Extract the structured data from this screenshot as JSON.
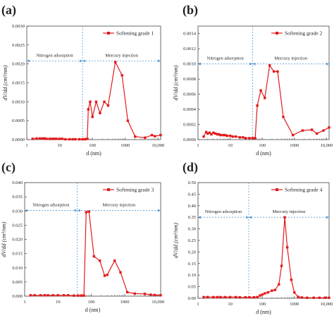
{
  "figure": {
    "common_xlabel": "d (nm)",
    "common_ylabel": "dV/dd (cm³/nm)",
    "region_labels": {
      "left": "Nitrogen adsorption",
      "right": "Mercury injection"
    },
    "colors": {
      "series": "#e31a1c",
      "axis": "#444444",
      "guide": "#5b9bd5"
    }
  },
  "chart_data": [
    {
      "panel": "(a)",
      "type": "line",
      "xscale": "log",
      "xlim": [
        1,
        12000
      ],
      "ylim": [
        0,
        0.003
      ],
      "yticks": [
        "0.0000",
        "0.0005",
        "0.0010",
        "0.0015",
        "0.0020",
        "0.0025",
        "0.0030"
      ],
      "ytick_values": [
        0,
        0.0005,
        0.001,
        0.0015,
        0.002,
        0.0025,
        0.003
      ],
      "xticks": [
        "1",
        "10",
        "100",
        "1000",
        "10,000"
      ],
      "xlabel": "d (nm)",
      "ylabel": "dV/dd (cm³/nm)",
      "legend": "Softening grade 1",
      "hline": 0.00208,
      "vline": 50,
      "series": [
        {
          "name": "Softening grade 1",
          "x": [
            1.5,
            2,
            2.5,
            3,
            3.5,
            4,
            5,
            6,
            7,
            8,
            10,
            12,
            15,
            20,
            25,
            30,
            40,
            50,
            60,
            70,
            75,
            85,
            100,
            130,
            170,
            230,
            300,
            500,
            800,
            1200,
            2000,
            4000,
            6500,
            8000,
            12000
          ],
          "y": [
            2e-05,
            3e-05,
            3e-05,
            3e-05,
            3e-05,
            2e-05,
            2e-05,
            2e-05,
            2e-05,
            2e-05,
            2e-05,
            2e-05,
            1e-05,
            1e-05,
            1e-05,
            1e-05,
            1e-05,
            1e-05,
            1e-05,
            2e-05,
            0.0008,
            0.001,
            0.0006,
            0.001,
            0.0007,
            0.001,
            0.0009,
            0.00205,
            0.0017,
            0.0005,
            8e-05,
            5e-05,
            0.00012,
            9e-05,
            0.00012
          ]
        }
      ]
    },
    {
      "panel": "(b)",
      "type": "line",
      "xscale": "log",
      "xlim": [
        1,
        12000
      ],
      "ylim": [
        0,
        0.0015
      ],
      "yticks": [
        "0.0000",
        "0.0002",
        "0.0004",
        "0.0006",
        "0.0008",
        "0.0010",
        "0.0012",
        "0.0014"
      ],
      "ytick_values": [
        0,
        0.0002,
        0.0004,
        0.0006,
        0.0008,
        0.001,
        0.0012,
        0.0014
      ],
      "xticks": [
        "1",
        "10",
        "100",
        "1000",
        "10,000"
      ],
      "xlabel": "d (nm)",
      "ylabel": "dV/dd (cm³/nm)",
      "legend": "Softening grade 2",
      "hline": 0.001,
      "vline": 50,
      "series": [
        {
          "name": "Softening grade 2",
          "x": [
            1.5,
            1.8,
            2,
            2.3,
            2.6,
            3,
            3.5,
            4,
            4.5,
            5,
            6,
            7,
            8,
            10,
            12,
            15,
            20,
            25,
            30,
            40,
            50,
            60,
            70,
            90,
            120,
            170,
            230,
            300,
            450,
            900,
            1800,
            3500,
            5000,
            8000,
            12000
          ],
          "y": [
            4e-05,
            0.0001,
            8e-05,
            9e-05,
            7e-05,
            9e-05,
            8e-05,
            7e-05,
            7e-05,
            6e-05,
            6e-05,
            6e-05,
            5e-05,
            5e-05,
            4e-05,
            4e-05,
            3e-05,
            3e-05,
            2e-05,
            2e-05,
            2e-05,
            2e-05,
            0.00045,
            0.00065,
            0.00055,
            0.00098,
            0.0009,
            0.0009,
            0.0003,
            6e-05,
            0.00012,
            0.00013,
            8e-05,
            0.00012,
            0.00016
          ]
        }
      ]
    },
    {
      "panel": "(c)",
      "type": "line",
      "xscale": "log",
      "xlim": [
        1,
        12000
      ],
      "ylim": [
        0,
        0.04
      ],
      "yticks": [
        "0.000",
        "0.005",
        "0.010",
        "0.015",
        "0.020",
        "0.025",
        "0.030",
        "0.035",
        "0.040"
      ],
      "ytick_values": [
        0,
        0.005,
        0.01,
        0.015,
        0.02,
        0.025,
        0.03,
        0.035,
        0.04
      ],
      "xticks": [
        "1",
        "10",
        "100",
        "1000",
        "10,000"
      ],
      "xlabel": "d (nm)",
      "ylabel": "dV/dd (cm³/nm)",
      "legend": "Softening grade 3",
      "hline": 0.0302,
      "vline": 38,
      "series": [
        {
          "name": "Softening grade 3",
          "x": [
            1.5,
            2,
            3,
            4,
            5,
            7,
            10,
            15,
            20,
            30,
            40,
            50,
            60,
            70,
            85,
            120,
            180,
            250,
            300,
            500,
            750,
            1200,
            2000,
            4000,
            6000,
            8000,
            12000
          ],
          "y": [
            0.0003,
            0.0003,
            0.0003,
            0.0003,
            0.0003,
            0.0003,
            0.0003,
            0.0003,
            0.0003,
            0.0002,
            0.0002,
            0.0002,
            0.0002,
            0.0296,
            0.0298,
            0.014,
            0.0125,
            0.0072,
            0.0075,
            0.0125,
            0.0084,
            0.0014,
            0.0009,
            0.0008,
            0.0005,
            0.0004,
            0.0003
          ]
        }
      ]
    },
    {
      "panel": "(d)",
      "type": "line",
      "xscale": "log",
      "xlim": [
        1,
        12000
      ],
      "ylim": [
        0,
        0.5
      ],
      "yticks": [
        "0.00",
        "0.05",
        "0.10",
        "0.15",
        "0.20",
        "0.25",
        "0.30",
        "0.35",
        "0.40",
        "0.45",
        "0.50"
      ],
      "ytick_values": [
        0,
        0.05,
        0.1,
        0.15,
        0.2,
        0.25,
        0.3,
        0.35,
        0.4,
        0.45,
        0.5
      ],
      "xticks": [
        "1",
        "10",
        "100",
        "1000",
        "10,000"
      ],
      "xlabel": "d (nm)",
      "ylabel": "dV/dd (cm³/nm)",
      "legend": "Softening grade 4",
      "hline": 0.35,
      "vline": 38,
      "series": [
        {
          "name": "Softening grade 4",
          "x": [
            1.5,
            2,
            3,
            4,
            5,
            7,
            10,
            15,
            20,
            30,
            40,
            55,
            70,
            85,
            100,
            120,
            150,
            200,
            250,
            330,
            400,
            500,
            600,
            800,
            1000,
            1300,
            1700,
            2500,
            4000,
            6000,
            9000,
            12000
          ],
          "y": [
            0.005,
            0.005,
            0.005,
            0.005,
            0.005,
            0.005,
            0.005,
            0.005,
            0.004,
            0.004,
            0.004,
            0.004,
            0.005,
            0.012,
            0.016,
            0.021,
            0.025,
            0.033,
            0.036,
            0.06,
            0.14,
            0.35,
            0.22,
            0.08,
            0.025,
            0.006,
            0.003,
            0.002,
            0.002,
            0.002,
            0.002,
            0.002
          ]
        }
      ]
    }
  ]
}
